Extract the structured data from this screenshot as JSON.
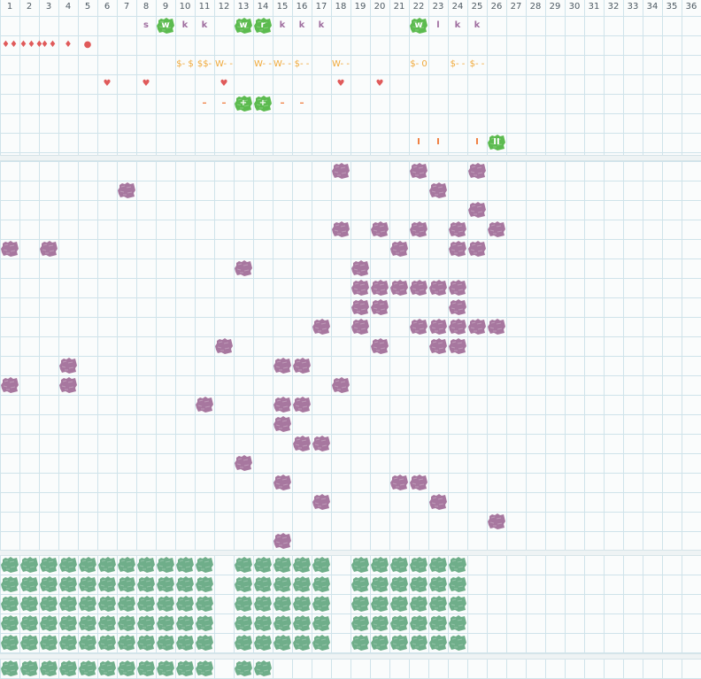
{
  "grid": {
    "columns": 36,
    "rows": 34
  },
  "column_numbers": [
    "1",
    "2",
    "3",
    "4",
    "5",
    "6",
    "7",
    "8",
    "9",
    "10",
    "11",
    "12",
    "13",
    "14",
    "15",
    "16",
    "17",
    "18",
    "19",
    "20",
    "21",
    "22",
    "23",
    "24",
    "25",
    "26",
    "27",
    "28",
    "29",
    "30",
    "31",
    "32",
    "33",
    "34",
    "35",
    "36"
  ],
  "colors": {
    "grid_line": "#cfe3ea",
    "purple_blob": "#a7779f",
    "green_blob": "#5cbb4f",
    "teal_blob": "#6fae8a",
    "glyph_purple": "#a06fa0",
    "glyph_orange": "#f0a93a",
    "glyph_red": "#e05a5a"
  },
  "header_row1": [
    {
      "col": 8,
      "text": "s",
      "style": "purple"
    },
    {
      "col": 9,
      "text": "w",
      "style": "green-blob"
    },
    {
      "col": 10,
      "text": "k",
      "style": "purple"
    },
    {
      "col": 11,
      "text": "k",
      "style": "purple"
    },
    {
      "col": 13,
      "text": "w",
      "style": "green-blob"
    },
    {
      "col": 14,
      "text": "r",
      "style": "green-blob"
    },
    {
      "col": 15,
      "text": "k",
      "style": "purple"
    },
    {
      "col": 16,
      "text": "k",
      "style": "purple"
    },
    {
      "col": 17,
      "text": "k",
      "style": "purple"
    },
    {
      "col": 22,
      "text": "w",
      "style": "green-blob"
    },
    {
      "col": 23,
      "text": "l",
      "style": "purple"
    },
    {
      "col": 24,
      "text": "k",
      "style": "purple"
    },
    {
      "col": 25,
      "text": "k",
      "style": "purple"
    }
  ],
  "header_row2": [
    {
      "col": 1,
      "text": "♦♦",
      "style": "red"
    },
    {
      "col": 2,
      "text": "♦♦♦",
      "style": "red"
    },
    {
      "col": 3,
      "text": "♦♦",
      "style": "red"
    },
    {
      "col": 4,
      "text": "♦",
      "style": "red"
    },
    {
      "col": 5,
      "text": "●",
      "style": "red"
    }
  ],
  "header_row3": [
    {
      "col": 10,
      "text": "$- $",
      "style": "orange"
    },
    {
      "col": 11,
      "text": "$$-",
      "style": "orange"
    },
    {
      "col": 12,
      "text": "W- -",
      "style": "orange"
    },
    {
      "col": 14,
      "text": "W- -",
      "style": "orange"
    },
    {
      "col": 15,
      "text": "W- -",
      "style": "orange"
    },
    {
      "col": 16,
      "text": "$- -",
      "style": "orange"
    },
    {
      "col": 18,
      "text": "W- -",
      "style": "orange"
    },
    {
      "col": 22,
      "text": "$- 0",
      "style": "orange"
    },
    {
      "col": 24,
      "text": "$- -",
      "style": "orange"
    },
    {
      "col": 25,
      "text": "$- -",
      "style": "orange"
    }
  ],
  "header_row4": [
    {
      "col": 6,
      "text": "♥",
      "style": "red"
    },
    {
      "col": 8,
      "text": "♥",
      "style": "red"
    },
    {
      "col": 12,
      "text": "♥",
      "style": "red"
    },
    {
      "col": 18,
      "text": "♥",
      "style": "red"
    },
    {
      "col": 20,
      "text": "♥",
      "style": "red"
    }
  ],
  "header_row5": [
    {
      "col": 11,
      "text": "–",
      "style": "orangered"
    },
    {
      "col": 12,
      "text": "–",
      "style": "orangered"
    },
    {
      "col": 13,
      "text": "+",
      "style": "green-blob"
    },
    {
      "col": 14,
      "text": "+",
      "style": "green-blob"
    },
    {
      "col": 15,
      "text": "–",
      "style": "orangered"
    },
    {
      "col": 16,
      "text": "–",
      "style": "orangered"
    }
  ],
  "header_row7": [
    {
      "col": 22,
      "text": "I",
      "style": "orangered"
    },
    {
      "col": 23,
      "text": "I",
      "style": "orangered"
    },
    {
      "col": 25,
      "text": "I",
      "style": "orangered"
    },
    {
      "col": 26,
      "text": "II",
      "style": "green-blob"
    }
  ],
  "purple_blobs": [
    [
      18,
      8
    ],
    [
      22,
      8
    ],
    [
      25,
      8
    ],
    [
      7,
      9
    ],
    [
      23,
      9
    ],
    [
      25,
      10
    ],
    [
      18,
      11
    ],
    [
      20,
      11
    ],
    [
      22,
      11
    ],
    [
      24,
      11
    ],
    [
      26,
      11
    ],
    [
      1,
      12
    ],
    [
      3,
      12
    ],
    [
      21,
      12
    ],
    [
      24,
      12
    ],
    [
      25,
      12
    ],
    [
      13,
      13
    ],
    [
      19,
      13
    ],
    [
      19,
      14
    ],
    [
      20,
      14
    ],
    [
      21,
      14
    ],
    [
      22,
      14
    ],
    [
      23,
      14
    ],
    [
      24,
      14
    ],
    [
      19,
      15
    ],
    [
      20,
      15
    ],
    [
      24,
      15
    ],
    [
      17,
      16
    ],
    [
      19,
      16
    ],
    [
      22,
      16
    ],
    [
      23,
      16
    ],
    [
      24,
      16
    ],
    [
      25,
      16
    ],
    [
      26,
      16
    ],
    [
      12,
      17
    ],
    [
      20,
      17
    ],
    [
      23,
      17
    ],
    [
      24,
      17
    ],
    [
      4,
      18
    ],
    [
      15,
      18
    ],
    [
      16,
      18
    ],
    [
      1,
      19
    ],
    [
      4,
      19
    ],
    [
      18,
      19
    ],
    [
      11,
      20
    ],
    [
      15,
      20
    ],
    [
      16,
      20
    ],
    [
      15,
      21
    ],
    [
      16,
      22
    ],
    [
      17,
      22
    ],
    [
      13,
      23
    ],
    [
      15,
      24
    ],
    [
      21,
      24
    ],
    [
      22,
      24
    ],
    [
      17,
      25
    ],
    [
      23,
      25
    ],
    [
      26,
      26
    ],
    [
      15,
      27
    ]
  ],
  "teal_rows": [
    {
      "row": 28,
      "cols": [
        1,
        2,
        3,
        4,
        5,
        6,
        7,
        8,
        9,
        10,
        11,
        13,
        14,
        15,
        16,
        17,
        19,
        20,
        21,
        22,
        23,
        24
      ]
    },
    {
      "row": 29,
      "cols": [
        1,
        2,
        3,
        4,
        5,
        6,
        7,
        8,
        9,
        10,
        11,
        13,
        14,
        15,
        16,
        17,
        19,
        20,
        21,
        22,
        23,
        24
      ]
    },
    {
      "row": 30,
      "cols": [
        1,
        2,
        3,
        4,
        5,
        6,
        7,
        8,
        9,
        10,
        11,
        13,
        14,
        15,
        16,
        17,
        19,
        20,
        21,
        22,
        23,
        24
      ]
    },
    {
      "row": 31,
      "cols": [
        1,
        2,
        3,
        4,
        5,
        6,
        7,
        8,
        9,
        10,
        11,
        13,
        14,
        15,
        16,
        17,
        19,
        20,
        21,
        22,
        23,
        24
      ]
    },
    {
      "row": 32,
      "cols": [
        1,
        2,
        3,
        4,
        5,
        6,
        7,
        8,
        9,
        10,
        11,
        13,
        14,
        15,
        16,
        17,
        19,
        20,
        21,
        22,
        23,
        24
      ]
    },
    {
      "row": 33,
      "cols": [
        1,
        2,
        3,
        4,
        5,
        6,
        7,
        8,
        9,
        10,
        11,
        13,
        14
      ]
    }
  ]
}
